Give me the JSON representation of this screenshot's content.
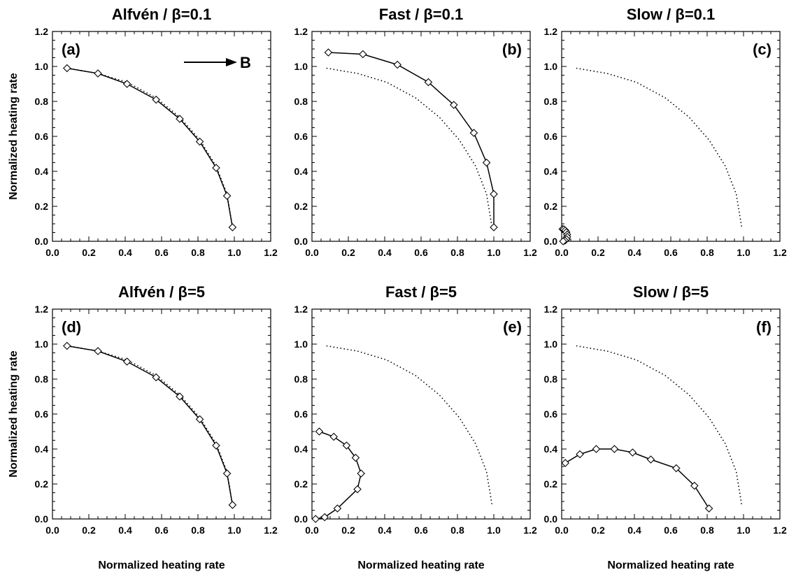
{
  "figure": {
    "x_axis_label": "Normalized heating rate",
    "y_axis_label": "Normalized heating rate",
    "field_label": "B"
  },
  "chart_data": [
    {
      "type": "line",
      "panel": "(a)",
      "title": "Alfvén / β=0.1",
      "xlim": [
        0,
        1.2
      ],
      "ylim": [
        0,
        1.2
      ],
      "xticks": [
        "0.0",
        "0.2",
        "0.4",
        "0.6",
        "0.8",
        "1.0",
        "1.2"
      ],
      "yticks": [
        "0.0",
        "0.2",
        "0.4",
        "0.6",
        "0.8",
        "1.0",
        "1.2"
      ],
      "series": [
        {
          "style": "solid-diamond",
          "x": [
            0.08,
            0.25,
            0.41,
            0.57,
            0.7,
            0.81,
            0.9,
            0.96,
            0.99
          ],
          "y": [
            0.99,
            0.96,
            0.9,
            0.81,
            0.7,
            0.57,
            0.42,
            0.26,
            0.08
          ]
        },
        {
          "style": "dotted",
          "x": [
            0.08,
            0.25,
            0.41,
            0.57,
            0.7,
            0.81,
            0.9,
            0.96,
            0.99
          ],
          "y": [
            0.99,
            0.96,
            0.91,
            0.82,
            0.71,
            0.58,
            0.43,
            0.27,
            0.08
          ]
        }
      ]
    },
    {
      "type": "line",
      "panel": "(b)",
      "title": "Fast / β=0.1",
      "xlim": [
        0,
        1.2
      ],
      "ylim": [
        0,
        1.2
      ],
      "xticks": [
        "0.0",
        "0.2",
        "0.4",
        "0.6",
        "0.8",
        "1.0",
        "1.2"
      ],
      "yticks": [
        "0.0",
        "0.2",
        "0.4",
        "0.6",
        "0.8",
        "1.0",
        "1.2"
      ],
      "series": [
        {
          "style": "solid-diamond",
          "x": [
            0.09,
            0.28,
            0.47,
            0.64,
            0.78,
            0.89,
            0.96,
            1.0,
            1.0
          ],
          "y": [
            1.08,
            1.07,
            1.01,
            0.91,
            0.78,
            0.62,
            0.45,
            0.27,
            0.08
          ]
        },
        {
          "style": "dotted",
          "x": [
            0.08,
            0.25,
            0.41,
            0.57,
            0.7,
            0.81,
            0.9,
            0.96,
            0.99
          ],
          "y": [
            0.99,
            0.96,
            0.91,
            0.82,
            0.71,
            0.58,
            0.43,
            0.27,
            0.08
          ]
        }
      ]
    },
    {
      "type": "line",
      "panel": "(c)",
      "title": "Slow / β=0.1",
      "xlim": [
        0,
        1.2
      ],
      "ylim": [
        0,
        1.2
      ],
      "xticks": [
        "0.0",
        "0.2",
        "0.4",
        "0.6",
        "0.8",
        "1.0",
        "1.2"
      ],
      "yticks": [
        "0.0",
        "0.2",
        "0.4",
        "0.6",
        "0.8",
        "1.0",
        "1.2"
      ],
      "series": [
        {
          "style": "solid-diamond",
          "x": [
            0.005,
            0.012,
            0.02,
            0.026,
            0.03,
            0.03,
            0.026,
            0.018,
            0.008
          ],
          "y": [
            0.07,
            0.068,
            0.062,
            0.052,
            0.038,
            0.025,
            0.012,
            0.004,
            0.0
          ]
        },
        {
          "style": "dotted",
          "x": [
            0.08,
            0.25,
            0.41,
            0.57,
            0.7,
            0.81,
            0.9,
            0.96,
            0.99
          ],
          "y": [
            0.99,
            0.96,
            0.91,
            0.82,
            0.71,
            0.58,
            0.43,
            0.27,
            0.08
          ]
        }
      ]
    },
    {
      "type": "line",
      "panel": "(d)",
      "title": "Alfvén / β=5",
      "xlim": [
        0,
        1.2
      ],
      "ylim": [
        0,
        1.2
      ],
      "xticks": [
        "0.0",
        "0.2",
        "0.4",
        "0.6",
        "0.8",
        "1.0",
        "1.2"
      ],
      "yticks": [
        "0.0",
        "0.2",
        "0.4",
        "0.6",
        "0.8",
        "1.0",
        "1.2"
      ],
      "series": [
        {
          "style": "solid-diamond",
          "x": [
            0.08,
            0.25,
            0.41,
            0.57,
            0.7,
            0.81,
            0.9,
            0.96,
            0.99
          ],
          "y": [
            0.99,
            0.96,
            0.9,
            0.81,
            0.7,
            0.57,
            0.42,
            0.26,
            0.08
          ]
        },
        {
          "style": "dotted",
          "x": [
            0.08,
            0.25,
            0.41,
            0.57,
            0.7,
            0.81,
            0.9,
            0.96,
            0.99
          ],
          "y": [
            0.99,
            0.96,
            0.91,
            0.82,
            0.71,
            0.58,
            0.43,
            0.27,
            0.08
          ]
        }
      ]
    },
    {
      "type": "line",
      "panel": "(e)",
      "title": "Fast / β=5",
      "xlim": [
        0,
        1.2
      ],
      "ylim": [
        0,
        1.2
      ],
      "xticks": [
        "0.0",
        "0.2",
        "0.4",
        "0.6",
        "0.8",
        "1.0",
        "1.2"
      ],
      "yticks": [
        "0.0",
        "0.2",
        "0.4",
        "0.6",
        "0.8",
        "1.0",
        "1.2"
      ],
      "series": [
        {
          "style": "solid-diamond",
          "x": [
            0.04,
            0.12,
            0.19,
            0.24,
            0.27,
            0.25,
            0.14,
            0.07,
            0.02
          ],
          "y": [
            0.5,
            0.47,
            0.42,
            0.35,
            0.26,
            0.17,
            0.06,
            0.01,
            0.0
          ]
        },
        {
          "style": "dotted",
          "x": [
            0.08,
            0.25,
            0.41,
            0.57,
            0.7,
            0.81,
            0.9,
            0.96,
            0.99
          ],
          "y": [
            0.99,
            0.96,
            0.91,
            0.82,
            0.71,
            0.58,
            0.43,
            0.27,
            0.08
          ]
        }
      ]
    },
    {
      "type": "line",
      "panel": "(f)",
      "title": "Slow / β=5",
      "xlim": [
        0,
        1.2
      ],
      "ylim": [
        0,
        1.2
      ],
      "xticks": [
        "0.0",
        "0.2",
        "0.4",
        "0.6",
        "0.8",
        "1.0",
        "1.2"
      ],
      "yticks": [
        "0.0",
        "0.2",
        "0.4",
        "0.6",
        "0.8",
        "1.0",
        "1.2"
      ],
      "series": [
        {
          "style": "solid-diamond",
          "x": [
            0.02,
            0.1,
            0.19,
            0.29,
            0.39,
            0.49,
            0.63,
            0.73,
            0.81
          ],
          "y": [
            0.32,
            0.37,
            0.4,
            0.4,
            0.38,
            0.34,
            0.29,
            0.19,
            0.06
          ]
        },
        {
          "style": "dotted",
          "x": [
            0.08,
            0.25,
            0.41,
            0.57,
            0.7,
            0.81,
            0.9,
            0.96,
            0.99
          ],
          "y": [
            0.99,
            0.96,
            0.91,
            0.82,
            0.71,
            0.58,
            0.43,
            0.27,
            0.08
          ]
        }
      ]
    }
  ]
}
